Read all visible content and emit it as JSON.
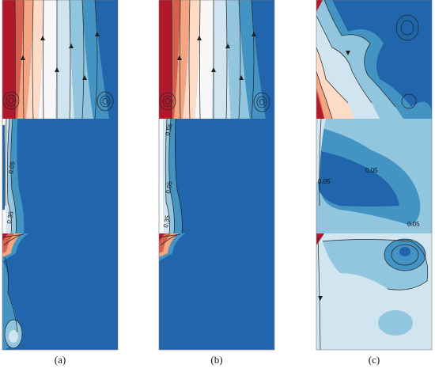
{
  "panel_labels": [
    "(a)",
    "(b)",
    "(c)"
  ],
  "contour_labels": {
    "a": [
      "0.05",
      "0.35"
    ],
    "b": [
      "0.55",
      "0.05",
      "0.35"
    ],
    "c": [
      "0.05",
      "0.05",
      "0.05",
      "0.05"
    ]
  },
  "colors": {
    "dark_red": "#b2182b",
    "red": "#d6604d",
    "salmon": "#f4a582",
    "peach": "#fddbc7",
    "white": "#f7f7f7",
    "pale_blue": "#d1e5f0",
    "light_blue": "#92c5de",
    "mid_blue": "#4393c3",
    "dark_blue": "#2166ac"
  }
}
